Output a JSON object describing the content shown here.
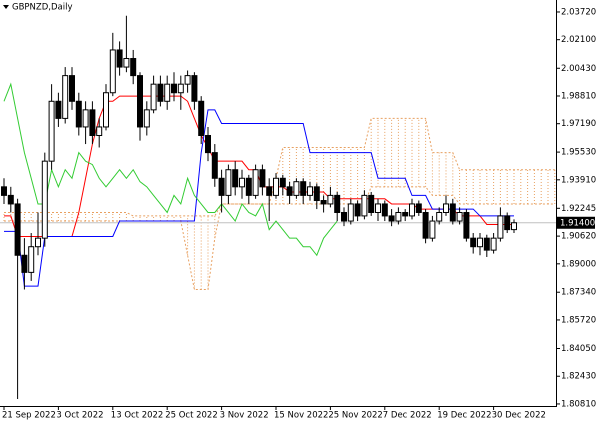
{
  "chart_data": {
    "type": "candlestick",
    "title": "GBPNZD,Daily",
    "categories": [
      "21 Sep 2022",
      null,
      null,
      null,
      null,
      null,
      null,
      null,
      "3 Oct 2022",
      null,
      null,
      null,
      null,
      null,
      null,
      null,
      "13 Oct 2022",
      null,
      null,
      null,
      null,
      null,
      null,
      null,
      "25 Oct 2022",
      null,
      null,
      null,
      null,
      null,
      null,
      null,
      "3 Nov 2022",
      null,
      null,
      null,
      null,
      null,
      null,
      null,
      "15 Nov 2022",
      null,
      null,
      null,
      null,
      null,
      null,
      null,
      "25 Nov 2022",
      null,
      null,
      null,
      null,
      null,
      null,
      null,
      "7 Dec 2022",
      null,
      null,
      null,
      null,
      null,
      null,
      null,
      "19 Dec 2022",
      null,
      null,
      null,
      null,
      null,
      null,
      null,
      "30 Dec 2022",
      null,
      null,
      null,
      null,
      null,
      null,
      null,
      null,
      null
    ],
    "open": [
      1.935,
      1.93,
      1.925,
      1.895,
      1.885,
      1.9,
      1.905,
      1.95,
      1.985,
      1.975,
      2.0,
      1.985,
      1.97,
      1.98,
      1.965,
      1.97,
      1.99,
      2.015,
      2.005,
      2.01,
      2.0,
      1.97,
      1.98,
      1.995,
      1.985,
      1.995,
      1.99,
      1.995,
      2.0,
      1.985,
      1.965,
      1.955,
      1.94,
      1.93,
      1.945,
      1.935,
      1.94,
      1.93,
      1.945,
      1.935,
      1.93,
      1.94,
      1.935,
      1.93,
      1.938,
      1.93,
      1.935,
      1.927,
      1.925,
      1.93,
      1.92,
      1.915,
      1.925,
      1.918,
      1.93,
      1.92,
      1.925,
      1.918,
      1.915,
      1.92,
      1.918,
      1.925,
      1.92,
      1.905,
      1.915,
      1.92,
      1.925,
      1.915,
      1.92,
      1.905,
      1.9,
      1.905,
      1.898,
      1.905,
      1.918,
      1.91,
      null,
      null,
      null,
      null,
      null,
      null
    ],
    "high": [
      1.94,
      1.935,
      1.928,
      1.905,
      1.908,
      1.92,
      1.955,
      1.995,
      1.99,
      2.005,
      2.005,
      1.99,
      1.985,
      1.985,
      1.975,
      1.995,
      2.025,
      2.02,
      2.035,
      2.015,
      2.002,
      1.985,
      2.0,
      2.0,
      2.0,
      2.002,
      2.0,
      2.003,
      2.002,
      1.988,
      1.97,
      1.96,
      1.945,
      1.948,
      1.95,
      1.945,
      1.942,
      1.948,
      1.948,
      1.94,
      1.943,
      1.942,
      1.938,
      1.94,
      1.94,
      1.938,
      1.937,
      1.93,
      1.935,
      1.932,
      1.923,
      1.928,
      1.927,
      1.933,
      1.932,
      1.928,
      1.927,
      1.922,
      1.923,
      1.922,
      1.928,
      1.927,
      1.922,
      1.918,
      1.923,
      1.93,
      1.928,
      1.923,
      1.922,
      1.908,
      1.908,
      1.907,
      1.908,
      1.923,
      1.92,
      1.916,
      null,
      null,
      null,
      null,
      null,
      null
    ],
    "low": [
      1.925,
      1.92,
      1.811,
      1.875,
      1.88,
      1.895,
      1.9,
      1.945,
      1.97,
      1.972,
      1.98,
      1.965,
      1.96,
      1.96,
      1.958,
      1.968,
      1.988,
      2.0,
      2.002,
      1.995,
      1.962,
      1.965,
      1.978,
      1.982,
      1.98,
      1.985,
      1.98,
      1.99,
      1.98,
      1.96,
      1.95,
      1.935,
      1.92,
      1.925,
      1.93,
      1.928,
      1.925,
      1.928,
      1.93,
      1.915,
      1.928,
      1.93,
      1.925,
      1.928,
      1.925,
      1.927,
      1.922,
      1.92,
      1.923,
      1.915,
      1.912,
      1.913,
      1.915,
      1.916,
      1.918,
      1.915,
      1.915,
      1.912,
      1.913,
      1.915,
      1.916,
      1.918,
      1.902,
      1.903,
      1.913,
      1.918,
      1.913,
      1.913,
      1.903,
      1.896,
      1.895,
      1.894,
      1.896,
      1.903,
      1.908,
      1.908,
      null,
      null,
      null,
      null,
      null,
      null
    ],
    "close": [
      1.93,
      1.925,
      1.895,
      1.885,
      1.9,
      1.905,
      1.95,
      1.985,
      1.975,
      2.0,
      1.985,
      1.97,
      1.98,
      1.965,
      1.97,
      1.99,
      2.015,
      2.005,
      2.01,
      2.0,
      1.97,
      1.98,
      1.995,
      1.985,
      1.995,
      1.99,
      1.995,
      2.0,
      1.985,
      1.965,
      1.955,
      1.94,
      1.93,
      1.945,
      1.935,
      1.94,
      1.93,
      1.945,
      1.935,
      1.93,
      1.94,
      1.935,
      1.93,
      1.938,
      1.93,
      1.935,
      1.927,
      1.925,
      1.93,
      1.92,
      1.915,
      1.925,
      1.918,
      1.93,
      1.92,
      1.925,
      1.918,
      1.915,
      1.92,
      1.918,
      1.925,
      1.92,
      1.905,
      1.915,
      1.92,
      1.925,
      1.915,
      1.92,
      1.905,
      1.9,
      1.905,
      1.898,
      1.905,
      1.918,
      1.91,
      1.914,
      null,
      null,
      null,
      null,
      null,
      null
    ],
    "bull_color": "#ffffff",
    "bear_color": "#000000",
    "lines": [
      {
        "color": "#ff0000",
        "values": [
          1.918,
          1.918,
          1.906,
          1.906,
          1.906,
          1.906,
          1.906,
          1.906,
          1.906,
          1.906,
          1.906,
          1.92,
          1.94,
          1.96,
          1.975,
          1.985,
          1.985,
          1.988,
          1.988,
          1.988,
          1.988,
          1.988,
          1.988,
          1.988,
          1.988,
          1.988,
          1.988,
          1.985,
          1.975,
          1.965,
          1.958,
          1.95,
          1.95,
          1.95,
          1.95,
          1.95,
          1.945,
          1.945,
          1.935,
          1.935,
          1.935,
          1.935,
          1.932,
          1.932,
          1.932,
          1.932,
          1.932,
          1.932,
          1.928,
          1.928,
          1.928,
          1.928,
          1.928,
          1.928,
          1.928,
          1.928,
          1.928,
          1.925,
          1.925,
          1.925,
          1.925,
          1.922,
          1.922,
          1.922,
          1.922,
          1.922,
          1.922,
          1.918,
          1.918,
          1.918,
          1.918,
          1.913,
          1.913,
          1.913,
          1.913,
          1.913,
          null,
          null,
          null,
          null,
          null,
          null
        ]
      },
      {
        "color": "#0000ff",
        "values": [
          1.909,
          1.909,
          1.909,
          1.877,
          1.877,
          1.877,
          1.906,
          1.906,
          1.906,
          1.906,
          1.906,
          1.906,
          1.906,
          1.906,
          1.906,
          1.906,
          1.906,
          1.915,
          1.915,
          1.915,
          1.915,
          1.915,
          1.915,
          1.915,
          1.915,
          1.915,
          1.915,
          1.915,
          1.915,
          1.955,
          1.98,
          1.98,
          1.972,
          1.972,
          1.972,
          1.972,
          1.972,
          1.972,
          1.972,
          1.972,
          1.972,
          1.972,
          1.972,
          1.972,
          1.972,
          1.955,
          1.955,
          1.955,
          1.955,
          1.955,
          1.955,
          1.955,
          1.955,
          1.955,
          1.955,
          1.94,
          1.94,
          1.94,
          1.94,
          1.94,
          1.93,
          1.93,
          1.93,
          1.922,
          1.922,
          1.922,
          1.922,
          1.922,
          1.922,
          1.922,
          1.918,
          1.918,
          1.918,
          1.918,
          1.918,
          1.918,
          null,
          null,
          null,
          null,
          null,
          null
        ]
      },
      {
        "color": "#33cc33",
        "values": [
          1.985,
          1.995,
          1.975,
          1.955,
          1.94,
          1.925,
          1.925,
          1.945,
          1.935,
          1.945,
          1.94,
          1.955,
          1.95,
          1.948,
          1.94,
          1.935,
          1.94,
          1.945,
          1.94,
          1.945,
          1.938,
          1.935,
          1.93,
          1.925,
          1.92,
          1.93,
          1.925,
          1.94,
          1.93,
          1.925,
          1.92,
          1.92,
          1.925,
          1.92,
          1.915,
          1.925,
          1.92,
          1.918,
          1.925,
          1.91,
          1.915,
          1.91,
          1.905,
          1.905,
          1.9,
          1.9,
          1.895,
          1.905,
          1.91,
          1.915,
          null,
          null,
          null,
          null,
          null,
          null,
          null,
          null,
          null,
          null,
          null,
          null,
          null,
          null,
          null,
          null,
          null,
          null,
          null,
          null,
          null,
          null,
          null,
          null,
          null,
          null,
          null,
          null,
          null,
          null,
          null,
          null
        ]
      }
    ],
    "cloud": {
      "color": "#e8a060",
      "span_a": [
        1.915,
        1.915,
        1.915,
        1.915,
        1.915,
        1.915,
        1.915,
        1.915,
        1.915,
        1.915,
        1.915,
        1.915,
        1.915,
        1.915,
        1.915,
        1.915,
        1.915,
        1.915,
        1.915,
        1.915,
        1.915,
        1.915,
        1.915,
        1.915,
        1.915,
        1.915,
        1.915,
        1.895,
        1.875,
        1.875,
        1.875,
        1.905,
        1.925,
        1.925,
        1.925,
        1.925,
        1.925,
        1.925,
        1.925,
        1.925,
        1.925,
        1.925,
        1.925,
        1.925,
        1.925,
        1.925,
        1.925,
        1.925,
        1.925,
        1.925,
        1.925,
        1.925,
        1.925,
        1.925,
        1.935,
        1.935,
        1.935,
        1.935,
        1.935,
        1.935,
        1.935,
        1.935,
        1.935,
        1.93,
        1.93,
        1.93,
        1.93,
        1.925,
        1.925,
        1.925,
        1.925,
        1.925,
        1.925,
        1.925,
        1.925,
        1.925,
        1.925,
        1.925,
        1.925,
        1.925,
        1.925,
        1.925
      ],
      "span_b": [
        1.92,
        1.92,
        1.92,
        1.92,
        1.92,
        1.92,
        1.92,
        1.92,
        1.92,
        1.92,
        1.92,
        1.92,
        1.92,
        1.92,
        1.92,
        1.92,
        1.92,
        1.92,
        1.92,
        1.918,
        1.918,
        1.918,
        1.918,
        1.918,
        1.918,
        1.918,
        1.918,
        1.918,
        1.918,
        1.918,
        1.918,
        1.918,
        1.925,
        1.925,
        1.925,
        1.925,
        1.925,
        1.925,
        1.925,
        1.925,
        1.94,
        1.958,
        1.958,
        1.958,
        1.958,
        1.958,
        1.958,
        1.958,
        1.958,
        1.958,
        1.958,
        1.958,
        1.958,
        1.958,
        1.975,
        1.975,
        1.975,
        1.975,
        1.975,
        1.975,
        1.975,
        1.975,
        1.975,
        1.955,
        1.955,
        1.955,
        1.955,
        1.945,
        1.945,
        1.945,
        1.945,
        1.945,
        1.945,
        1.945,
        1.945,
        1.945,
        1.945,
        1.945,
        1.945,
        1.945,
        1.945,
        1.945
      ]
    },
    "current_price": {
      "value": 1.914,
      "label": "1.91400"
    },
    "ylim": [
      1.8069,
      2.0442
    ],
    "yticks": [
      {
        "value": 2.0372,
        "label": "2.03720"
      },
      {
        "value": 2.021,
        "label": "2.02100"
      },
      {
        "value": 2.0043,
        "label": "2.00430"
      },
      {
        "value": 1.9881,
        "label": "1.98810"
      },
      {
        "value": 1.9719,
        "label": "1.97190"
      },
      {
        "value": 1.9553,
        "label": "1.95530"
      },
      {
        "value": 1.9391,
        "label": "1.93910"
      },
      {
        "value": 1.92245,
        "label": "1.92245"
      },
      {
        "value": 1.9062,
        "label": "1.90620"
      },
      {
        "value": 1.89,
        "label": "1.89000"
      },
      {
        "value": 1.8734,
        "label": "1.87340"
      },
      {
        "value": 1.8572,
        "label": "1.85720"
      },
      {
        "value": 1.8405,
        "label": "1.84050"
      },
      {
        "value": 1.8243,
        "label": "1.82430"
      },
      {
        "value": 1.8081,
        "label": "1.80810"
      }
    ]
  }
}
